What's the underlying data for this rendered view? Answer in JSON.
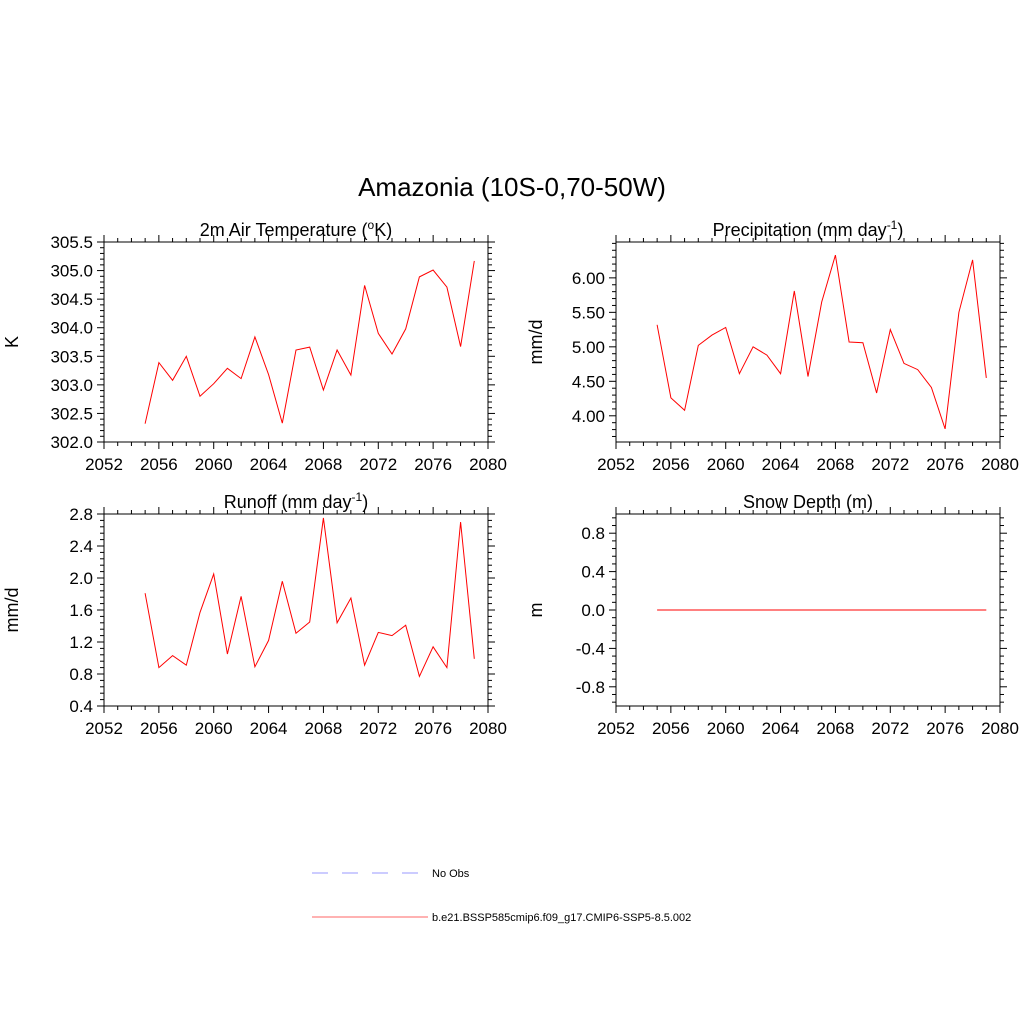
{
  "figure": {
    "title": "Amazonia (10S-0,70-50W)"
  },
  "legend": [
    {
      "label": "No Obs",
      "color": "#9999ff",
      "dash": true
    },
    {
      "label": "b.e21.BSSP585cmip6.f09_g17.CMIP6-SSP5-8.5.002",
      "color": "#ff6666",
      "dash": false
    }
  ],
  "chart_data": [
    {
      "type": "line",
      "title": "2m Air Temperature (",
      "title_sup": "o",
      "title_after": "K)",
      "xlabel": "",
      "ylabel": "K",
      "xlim": [
        2052,
        2080
      ],
      "ylim": [
        302.0,
        305.5
      ],
      "xticks": [
        2052,
        2056,
        2060,
        2064,
        2068,
        2072,
        2076,
        2080
      ],
      "xtick_labels": [
        "2052",
        "2056",
        "2060",
        "2064",
        "2068",
        "2072",
        "2076",
        "2080"
      ],
      "yticks": [
        302.0,
        302.5,
        303.0,
        303.5,
        304.0,
        304.5,
        305.0,
        305.5
      ],
      "ytick_labels": [
        "302.0",
        "302.5",
        "303.0",
        "303.5",
        "304.0",
        "304.5",
        "305.0",
        "305.5"
      ],
      "color": "#ff0000",
      "x": [
        2055,
        2056,
        2057,
        2058,
        2059,
        2060,
        2061,
        2062,
        2063,
        2064,
        2065,
        2066,
        2067,
        2068,
        2069,
        2070,
        2071,
        2072,
        2073,
        2074,
        2075,
        2076,
        2077,
        2078,
        2079
      ],
      "y": [
        302.32,
        303.39,
        303.08,
        303.5,
        302.8,
        303.02,
        303.29,
        303.11,
        303.84,
        303.18,
        302.33,
        303.61,
        303.66,
        302.91,
        303.61,
        303.17,
        304.74,
        303.9,
        303.54,
        303.98,
        304.89,
        305.01,
        304.71,
        303.67,
        305.17
      ]
    },
    {
      "type": "line",
      "title": "Precipitation (mm day",
      "title_sup": "-1",
      "title_after": ")",
      "xlabel": "",
      "ylabel": "mm/d",
      "xlim": [
        2052,
        2080
      ],
      "ylim": [
        3.62,
        6.52
      ],
      "xticks": [
        2052,
        2056,
        2060,
        2064,
        2068,
        2072,
        2076,
        2080
      ],
      "xtick_labels": [
        "2052",
        "2056",
        "2060",
        "2064",
        "2068",
        "2072",
        "2076",
        "2080"
      ],
      "yticks": [
        4.0,
        4.5,
        5.0,
        5.5,
        6.0
      ],
      "ytick_labels": [
        "4.00",
        "4.50",
        "5.00",
        "5.50",
        "6.00"
      ],
      "color": "#ff0000",
      "x": [
        2055,
        2056,
        2057,
        2058,
        2059,
        2060,
        2061,
        2062,
        2063,
        2064,
        2065,
        2066,
        2067,
        2068,
        2069,
        2070,
        2071,
        2072,
        2073,
        2074,
        2075,
        2076,
        2077,
        2078,
        2079
      ],
      "y": [
        5.32,
        4.26,
        4.08,
        5.02,
        5.17,
        5.28,
        4.61,
        5.0,
        4.88,
        4.61,
        5.81,
        4.57,
        5.65,
        6.33,
        5.07,
        5.06,
        4.33,
        5.25,
        4.76,
        4.67,
        4.41,
        3.81,
        5.5,
        6.26,
        4.55
      ]
    },
    {
      "type": "line",
      "title": "Runoff (mm day",
      "title_sup": "-1",
      "title_after": ")",
      "xlabel": "",
      "ylabel": "mm/d",
      "xlim": [
        2052,
        2080
      ],
      "ylim": [
        0.4,
        2.8
      ],
      "xticks": [
        2052,
        2056,
        2060,
        2064,
        2068,
        2072,
        2076,
        2080
      ],
      "xtick_labels": [
        "2052",
        "2056",
        "2060",
        "2064",
        "2068",
        "2072",
        "2076",
        "2080"
      ],
      "yticks": [
        0.4,
        0.8,
        1.2,
        1.6,
        2.0,
        2.4,
        2.8
      ],
      "ytick_labels": [
        "0.4",
        "0.8",
        "1.2",
        "1.6",
        "2.0",
        "2.4",
        "2.8"
      ],
      "color": "#ff0000",
      "x": [
        2055,
        2056,
        2057,
        2058,
        2059,
        2060,
        2061,
        2062,
        2063,
        2064,
        2065,
        2066,
        2067,
        2068,
        2069,
        2070,
        2071,
        2072,
        2073,
        2074,
        2075,
        2076,
        2077,
        2078,
        2079
      ],
      "y": [
        1.81,
        0.88,
        1.03,
        0.91,
        1.57,
        2.05,
        1.05,
        1.77,
        0.89,
        1.22,
        1.96,
        1.31,
        1.45,
        2.75,
        1.44,
        1.75,
        0.91,
        1.32,
        1.28,
        1.41,
        0.77,
        1.14,
        0.88,
        2.7,
        0.99
      ]
    },
    {
      "type": "line",
      "title": "Snow Depth (m)",
      "title_sup": "",
      "title_after": "",
      "xlabel": "",
      "ylabel": "m",
      "xlim": [
        2052,
        2080
      ],
      "ylim": [
        -1.0,
        1.0
      ],
      "xticks": [
        2052,
        2056,
        2060,
        2064,
        2068,
        2072,
        2076,
        2080
      ],
      "xtick_labels": [
        "2052",
        "2056",
        "2060",
        "2064",
        "2068",
        "2072",
        "2076",
        "2080"
      ],
      "yticks": [
        -0.8,
        -0.4,
        0.0,
        0.4,
        0.8
      ],
      "ytick_labels": [
        "-0.8",
        "-0.4",
        "0.0",
        "0.4",
        "0.8"
      ],
      "color": "#ff0000",
      "x": [
        2055,
        2056,
        2057,
        2058,
        2059,
        2060,
        2061,
        2062,
        2063,
        2064,
        2065,
        2066,
        2067,
        2068,
        2069,
        2070,
        2071,
        2072,
        2073,
        2074,
        2075,
        2076,
        2077,
        2078,
        2079
      ],
      "y": [
        0,
        0,
        0,
        0,
        0,
        0,
        0,
        0,
        0,
        0,
        0,
        0,
        0,
        0,
        0,
        0,
        0,
        0,
        0,
        0,
        0,
        0,
        0,
        0,
        0
      ]
    }
  ]
}
